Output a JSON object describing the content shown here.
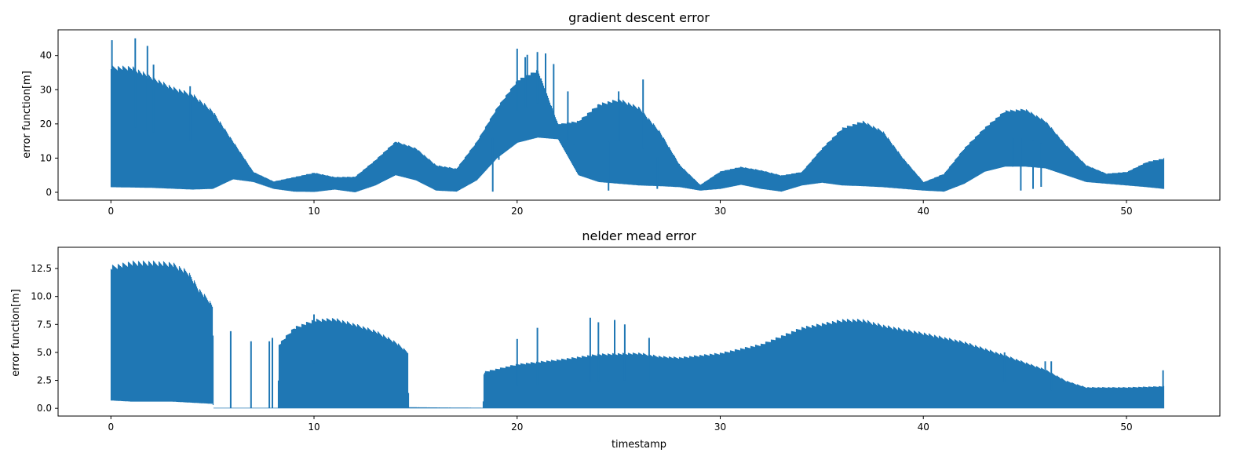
{
  "chart_data": [
    {
      "type": "line",
      "title": "gradient descent error",
      "xlabel": "",
      "ylabel": "error function[m]",
      "xlim": [
        -2.6,
        54.6
      ],
      "ylim": [
        -2.3,
        47.5
      ],
      "xticks": [
        0,
        10,
        20,
        30,
        40,
        50
      ],
      "yticks": [
        0,
        10,
        20,
        30,
        40
      ],
      "ytick_labels": [
        "0",
        "10",
        "20",
        "30",
        "40"
      ],
      "grid": false,
      "color": "#1f77b4",
      "series": [
        {
          "x_range": [
            0,
            51.8
          ],
          "upper_envelope": [
            [
              0,
              37
            ],
            [
              1,
              37
            ],
            [
              2,
              34
            ],
            [
              3,
              31
            ],
            [
              4,
              29
            ],
            [
              5,
              24
            ],
            [
              6,
              15
            ],
            [
              7,
              6
            ],
            [
              8,
              3.2
            ],
            [
              9,
              4.5
            ],
            [
              10,
              5.8
            ],
            [
              11,
              4.5
            ],
            [
              12,
              4.6
            ],
            [
              13,
              9.5
            ],
            [
              14,
              15
            ],
            [
              15,
              13
            ],
            [
              16,
              8
            ],
            [
              17,
              7
            ],
            [
              18,
              15
            ],
            [
              19,
              25
            ],
            [
              20,
              33
            ],
            [
              21,
              36
            ],
            [
              22,
              20
            ],
            [
              23,
              21
            ],
            [
              24,
              26
            ],
            [
              25,
              27.5
            ],
            [
              26,
              25
            ],
            [
              27,
              18
            ],
            [
              28,
              8
            ],
            [
              29,
              2.2
            ],
            [
              30,
              6.2
            ],
            [
              31,
              7.5
            ],
            [
              32,
              6.5
            ],
            [
              33,
              5
            ],
            [
              34,
              6
            ],
            [
              35,
              13
            ],
            [
              36,
              19
            ],
            [
              37,
              21
            ],
            [
              38,
              18
            ],
            [
              39,
              10
            ],
            [
              40,
              3
            ],
            [
              41,
              5.5
            ],
            [
              42,
              13
            ],
            [
              43,
              19
            ],
            [
              44,
              24
            ],
            [
              45,
              24.5
            ],
            [
              46,
              21
            ],
            [
              47,
              14
            ],
            [
              48,
              8
            ],
            [
              49,
              5.5
            ],
            [
              50,
              6
            ],
            [
              51,
              9
            ],
            [
              51.8,
              10
            ]
          ],
          "lower_envelope": [
            [
              0,
              1.5
            ],
            [
              2,
              1.3
            ],
            [
              4,
              0.8
            ],
            [
              5,
              1
            ],
            [
              6,
              3.8
            ],
            [
              7,
              3
            ],
            [
              8,
              1
            ],
            [
              9,
              0.2
            ],
            [
              10,
              0.1
            ],
            [
              11,
              0.8
            ],
            [
              12,
              0
            ],
            [
              13,
              2
            ],
            [
              14,
              5
            ],
            [
              15,
              3.5
            ],
            [
              16,
              0.5
            ],
            [
              17,
              0.2
            ],
            [
              18,
              3.5
            ],
            [
              19,
              10
            ],
            [
              20,
              14.5
            ],
            [
              21,
              16
            ],
            [
              22,
              15.5
            ],
            [
              23,
              5
            ],
            [
              24,
              3
            ],
            [
              25,
              2.5
            ],
            [
              26,
              2
            ],
            [
              27,
              1.8
            ],
            [
              28,
              1.5
            ],
            [
              29,
              0.5
            ],
            [
              30,
              1
            ],
            [
              31,
              2.2
            ],
            [
              32,
              1
            ],
            [
              33,
              0.2
            ],
            [
              34,
              2
            ],
            [
              35,
              2.8
            ],
            [
              36,
              2
            ],
            [
              37,
              1.8
            ],
            [
              38,
              1.5
            ],
            [
              39,
              1
            ],
            [
              40,
              0.5
            ],
            [
              41,
              0.2
            ],
            [
              42,
              2.5
            ],
            [
              43,
              6
            ],
            [
              44,
              7.5
            ],
            [
              45,
              7.5
            ],
            [
              46,
              7
            ],
            [
              47,
              5
            ],
            [
              48,
              3
            ],
            [
              49,
              2.5
            ],
            [
              50,
              2
            ],
            [
              51,
              1.5
            ],
            [
              51.8,
              1
            ]
          ],
          "spikes": [
            [
              0.05,
              44.5
            ],
            [
              1.2,
              45
            ],
            [
              1.8,
              42.8
            ],
            [
              2.1,
              37.3
            ],
            [
              3.9,
              31
            ],
            [
              18.8,
              0.2
            ],
            [
              19.1,
              9.5
            ],
            [
              20.0,
              42
            ],
            [
              20.4,
              39.5
            ],
            [
              20.5,
              40.2
            ],
            [
              21.0,
              41
            ],
            [
              21.4,
              40.6
            ],
            [
              21.8,
              37.5
            ],
            [
              22.5,
              29.5
            ],
            [
              22.8,
              14
            ],
            [
              25.0,
              29.5
            ],
            [
              26.2,
              33
            ],
            [
              24.5,
              0.5
            ],
            [
              26.9,
              1
            ],
            [
              44.4,
              7.5
            ],
            [
              44.8,
              0.5
            ],
            [
              45.4,
              1
            ],
            [
              45.8,
              1.6
            ]
          ]
        }
      ]
    },
    {
      "type": "line",
      "title": "nelder mead error",
      "xlabel": "timestamp",
      "ylabel": "error function[m]",
      "xlim": [
        -2.6,
        54.6
      ],
      "ylim": [
        -0.69,
        14.4
      ],
      "xticks": [
        0,
        10,
        20,
        30,
        40,
        50
      ],
      "yticks": [
        0,
        2.5,
        5,
        7.5,
        10,
        12.5
      ],
      "ytick_labels": [
        "0.0",
        "2.5",
        "5.0",
        "7.5",
        "10.0",
        "12.5"
      ],
      "grid": false,
      "color": "#1f77b4",
      "series": [
        {
          "x_range": [
            0,
            51.8
          ],
          "upper_envelope": [
            [
              0,
              12.8
            ],
            [
              1,
              13.2
            ],
            [
              2,
              13.2
            ],
            [
              3,
              13.1
            ],
            [
              3.8,
              12.3
            ],
            [
              4.3,
              10.8
            ],
            [
              4.8,
              9.8
            ],
            [
              5.0,
              9.2
            ],
            [
              5.05,
              0.05
            ],
            [
              8.2,
              0.05
            ],
            [
              8.25,
              5.8
            ],
            [
              9,
              7.3
            ],
            [
              10,
              8
            ],
            [
              11,
              8.1
            ],
            [
              12,
              7.6
            ],
            [
              13,
              7
            ],
            [
              14,
              6
            ],
            [
              14.6,
              5.1
            ],
            [
              14.65,
              0.1
            ],
            [
              18.3,
              0.05
            ],
            [
              18.35,
              3.3
            ],
            [
              20,
              4
            ],
            [
              22,
              4.4
            ],
            [
              24,
              4.9
            ],
            [
              26,
              5
            ],
            [
              27,
              4.7
            ],
            [
              28,
              4.6
            ],
            [
              30,
              5
            ],
            [
              32,
              5.8
            ],
            [
              34,
              7.3
            ],
            [
              36,
              8
            ],
            [
              37,
              8
            ],
            [
              38,
              7.5
            ],
            [
              40,
              6.8
            ],
            [
              42,
              6
            ],
            [
              44,
              4.8
            ],
            [
              46,
              3.5
            ],
            [
              47,
              2.5
            ],
            [
              48,
              1.9
            ],
            [
              50,
              1.9
            ],
            [
              51.8,
              2
            ]
          ],
          "lower_envelope": [
            [
              0,
              0.7
            ],
            [
              1,
              0.6
            ],
            [
              2,
              0.6
            ],
            [
              3,
              0.6
            ],
            [
              4,
              0.5
            ],
            [
              5,
              0.4
            ],
            [
              5.05,
              0
            ],
            [
              51.8,
              0
            ]
          ],
          "spikes": [
            [
              5.9,
              6.9
            ],
            [
              6.9,
              6
            ],
            [
              7.8,
              6
            ],
            [
              7.95,
              6.3
            ],
            [
              10,
              8.4
            ],
            [
              20,
              6.2
            ],
            [
              21,
              7.2
            ],
            [
              23.6,
              8.1
            ],
            [
              24,
              7.7
            ],
            [
              24.8,
              7.9
            ],
            [
              25.3,
              7.5
            ],
            [
              26.5,
              6.3
            ],
            [
              44,
              5
            ],
            [
              46,
              4.2
            ],
            [
              46.3,
              4.2
            ],
            [
              51.8,
              3.4
            ]
          ]
        }
      ]
    }
  ]
}
